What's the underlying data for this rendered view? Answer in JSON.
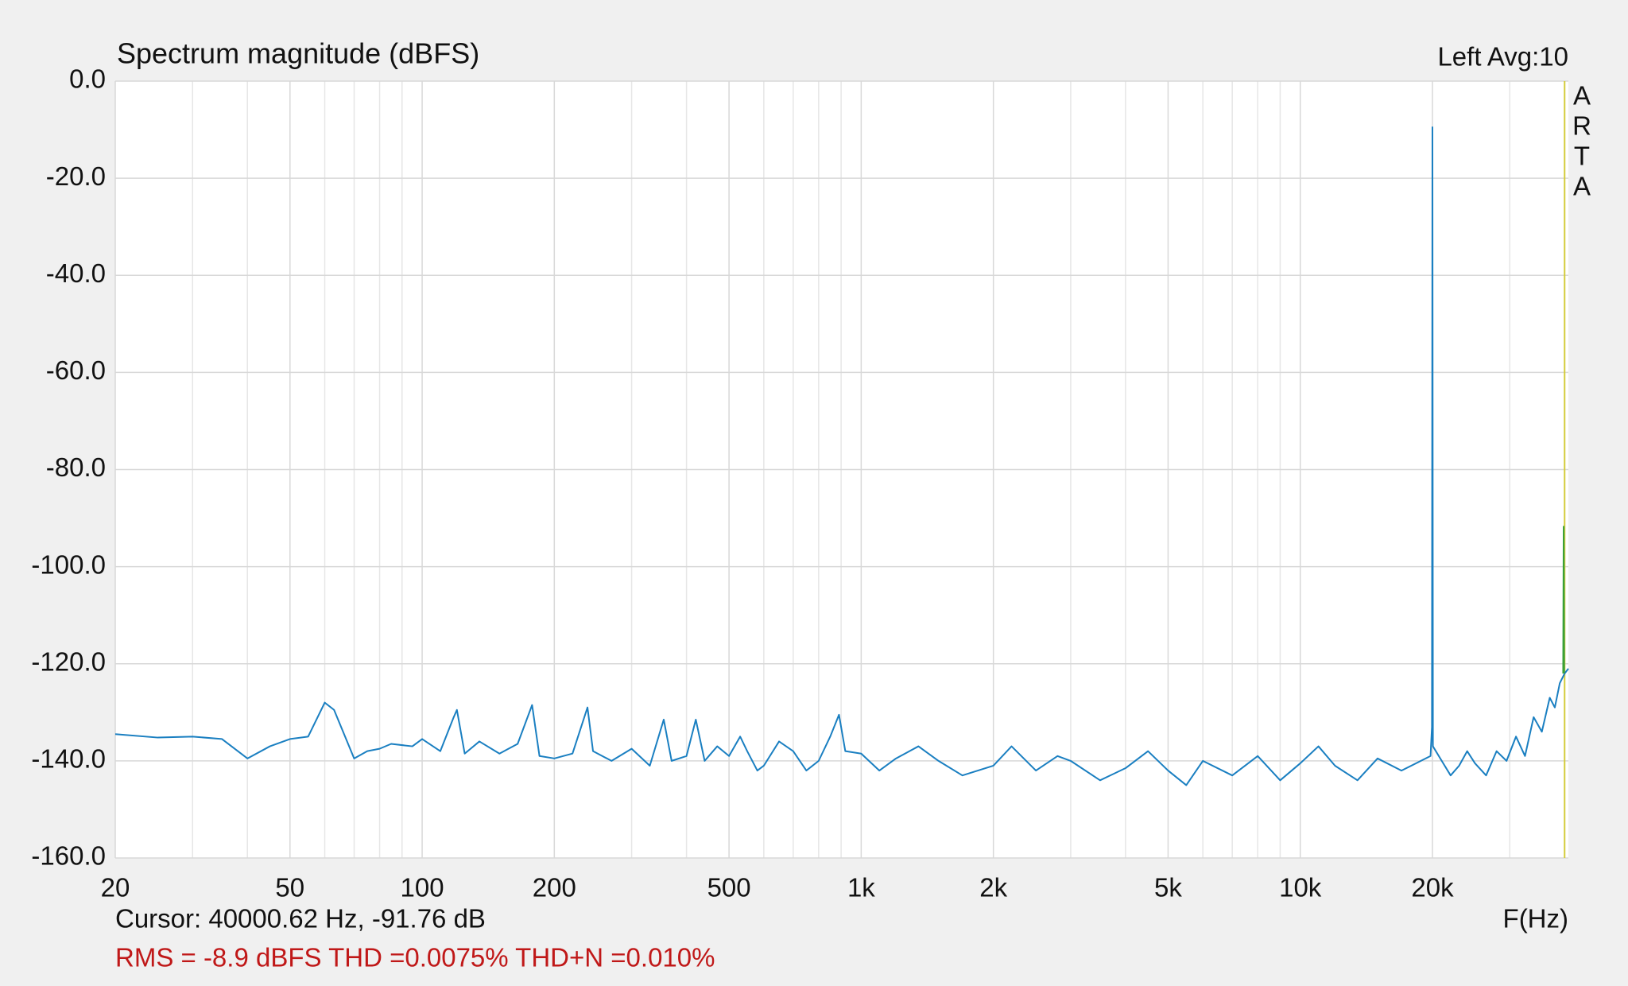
{
  "chart_data": {
    "type": "line",
    "title": "Spectrum magnitude (dBFS)",
    "channel_info": "Left  Avg:10",
    "brand_letters": [
      "A",
      "R",
      "T",
      "A"
    ],
    "x_label": "F(Hz)",
    "cursor_text": "Cursor: 40000.62 Hz, -91.76 dB",
    "stats_text": "RMS =   -8.9 dBFS THD =0.0075% THD+N =0.010%",
    "log_x": true,
    "grid": true,
    "xlim": [
      20,
      40800
    ],
    "ylim": [
      -160,
      0
    ],
    "xticks": [
      20,
      50,
      100,
      200,
      500,
      {
        "value": 1000,
        "label": "1k"
      },
      {
        "value": 2000,
        "label": "2k"
      },
      {
        "value": 5000,
        "label": "5k"
      },
      {
        "value": 10000,
        "label": "10k"
      },
      {
        "value": 20000,
        "label": "20k"
      }
    ],
    "x_minor_grid": [
      30,
      40,
      60,
      70,
      80,
      90,
      300,
      400,
      600,
      700,
      800,
      900,
      3000,
      4000,
      6000,
      7000,
      8000,
      9000,
      30000,
      40000
    ],
    "yticks": [
      {
        "value": 0,
        "label": "0.0"
      },
      {
        "value": -20,
        "label": "-20.0"
      },
      {
        "value": -40,
        "label": "-40.0"
      },
      {
        "value": -60,
        "label": "-60.0"
      },
      {
        "value": -80,
        "label": "-80.0"
      },
      {
        "value": -100,
        "label": "-100.0"
      },
      {
        "value": -120,
        "label": "-120.0"
      },
      {
        "value": -140,
        "label": "-140.0"
      },
      {
        "value": -160,
        "label": "-160.0"
      }
    ],
    "cursor_x": 40000.62,
    "cursor_color": "#d4cc3a",
    "series": [
      {
        "color": "#1a7fc1",
        "x": [
          20,
          25,
          30,
          35,
          40,
          45,
          50,
          55,
          60,
          63,
          70,
          75,
          80,
          85,
          95,
          100,
          110,
          118,
          120,
          125,
          135,
          150,
          165,
          178,
          185,
          200,
          220,
          238,
          245,
          270,
          300,
          330,
          355,
          370,
          400,
          420,
          440,
          470,
          500,
          530,
          550,
          580,
          600,
          650,
          700,
          750,
          800,
          850,
          890,
          920,
          1000,
          1100,
          1200,
          1350,
          1500,
          1700,
          2000,
          2200,
          2500,
          2800,
          3000,
          3500,
          4000,
          4500,
          5000,
          5500,
          6000,
          7000,
          8000,
          9000,
          10000,
          11000,
          12000,
          13500,
          15000,
          17000,
          19800,
          19950,
          20000,
          20050,
          21000,
          22000,
          23000,
          24000,
          25000,
          26500,
          28000,
          29500,
          31000,
          32500,
          34000,
          35500,
          37000,
          38000,
          39000,
          40000,
          40800
        ],
        "values": [
          -134.5,
          -135.2,
          -135,
          -135.5,
          -139.5,
          -137,
          -135.5,
          -135,
          -128,
          -129.5,
          -139.5,
          -138,
          -137.5,
          -136.5,
          -137,
          -135.5,
          -138,
          -131,
          -129.5,
          -138.5,
          -136,
          -138.5,
          -136.5,
          -128.5,
          -139,
          -139.5,
          -138.5,
          -129,
          -138,
          -140,
          -137.5,
          -141,
          -131.5,
          -140,
          -139,
          -131.5,
          -140,
          -137,
          -139,
          -135,
          -138,
          -142,
          -141,
          -136,
          -138,
          -142,
          -140,
          -135,
          -130.5,
          -138,
          -138.5,
          -142,
          -139.5,
          -137,
          -140,
          -143,
          -141,
          -137,
          -142,
          -139,
          -140,
          -144,
          -141.5,
          -138,
          -142,
          -145,
          -140,
          -143,
          -139,
          -144,
          -140.5,
          -137,
          -141,
          -144,
          -139.5,
          -142,
          -139,
          -133,
          -9.5,
          -137,
          -140,
          -143,
          -141,
          -138,
          -140.5,
          -143,
          -138,
          -140,
          -135,
          -139,
          -131,
          -134,
          -127,
          -129,
          -124,
          -122,
          -121
        ]
      },
      {
        "color": "#3aa03a",
        "x": [
          39700,
          39800,
          39900
        ],
        "values": [
          -122,
          -91.76,
          -122
        ]
      }
    ]
  }
}
